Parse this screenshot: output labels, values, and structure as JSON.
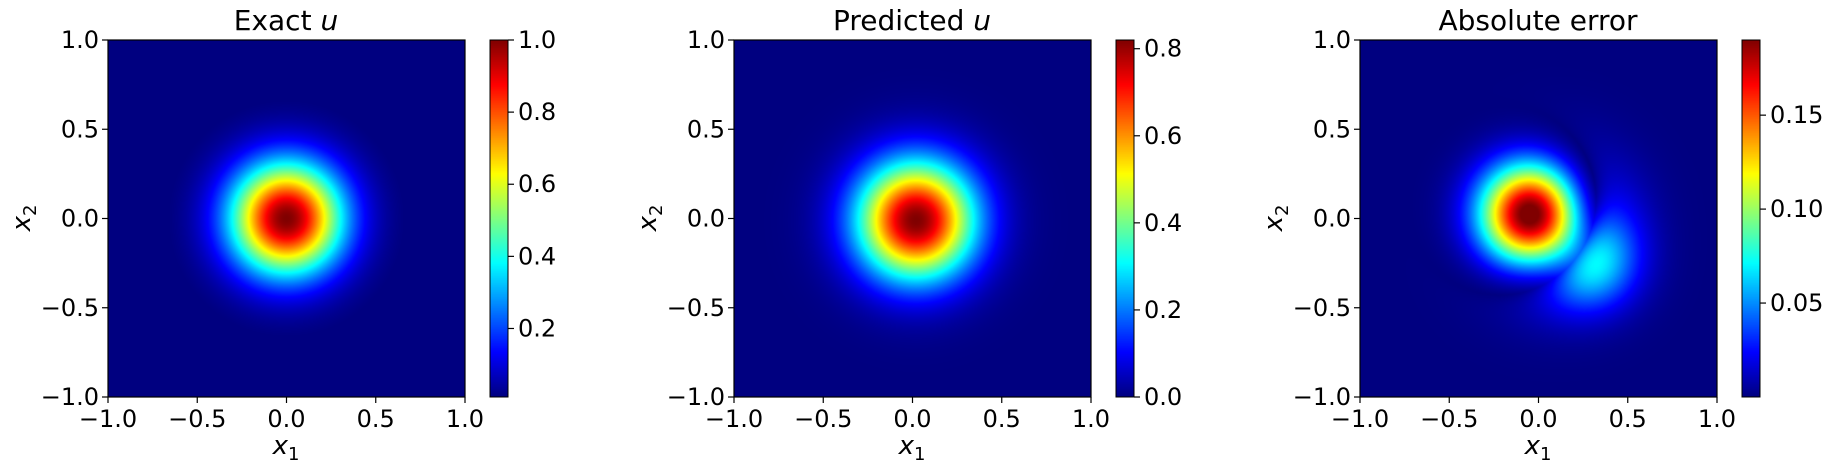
{
  "chart_data": [
    {
      "type": "heatmap",
      "title": "Exact u",
      "title_plain": "Exact ",
      "title_var": "u",
      "xlabel": "x_1",
      "ylabel": "x_2",
      "xlim": [
        -1.0,
        1.0
      ],
      "ylim": [
        -1.0,
        1.0
      ],
      "xticks": [
        -1.0,
        -0.5,
        0.0,
        0.5,
        1.0
      ],
      "yticks": [
        -1.0,
        -0.5,
        0.0,
        0.5,
        1.0
      ],
      "xtick_labels": [
        "−1.0",
        "−0.5",
        "0.0",
        "0.5",
        "1.0"
      ],
      "ytick_labels": [
        "−1.0",
        "−0.5",
        "0.0",
        "0.5",
        "1.0"
      ],
      "colormap": "jet",
      "field": {
        "kind": "gaussian",
        "amplitude": 1.0,
        "cx": 0.0,
        "cy": 0.0,
        "sigma": 0.22
      },
      "colorbar": {
        "range": [
          0.01,
          1.0
        ],
        "ticks": [
          0.2,
          0.4,
          0.6,
          0.8,
          1.0
        ],
        "tick_labels": [
          "0.2",
          "0.4",
          "0.6",
          "0.8",
          "1.0"
        ]
      }
    },
    {
      "type": "heatmap",
      "title": "Predicted u",
      "title_plain": "Predicted ",
      "title_var": "u",
      "xlabel": "x_1",
      "ylabel": "x_2",
      "xlim": [
        -1.0,
        1.0
      ],
      "ylim": [
        -1.0,
        1.0
      ],
      "xticks": [
        -1.0,
        -0.5,
        0.0,
        0.5,
        1.0
      ],
      "yticks": [
        -1.0,
        -0.5,
        0.0,
        0.5,
        1.0
      ],
      "xtick_labels": [
        "−1.0",
        "−0.5",
        "0.0",
        "0.5",
        "1.0"
      ],
      "ytick_labels": [
        "−1.0",
        "−0.5",
        "0.0",
        "0.5",
        "1.0"
      ],
      "colormap": "jet",
      "field": {
        "kind": "gaussian",
        "amplitude": 0.82,
        "cx": 0.02,
        "cy": -0.01,
        "sigma": 0.23
      },
      "colorbar": {
        "range": [
          0.0,
          0.82
        ],
        "ticks": [
          0.0,
          0.2,
          0.4,
          0.6,
          0.8
        ],
        "tick_labels": [
          "0.0",
          "0.2",
          "0.4",
          "0.6",
          "0.8"
        ]
      }
    },
    {
      "type": "heatmap",
      "title": "Absolute error",
      "title_plain": "Absolute error",
      "title_var": "",
      "xlabel": "x_1",
      "ylabel": "x_2",
      "xlim": [
        -1.0,
        1.0
      ],
      "ylim": [
        -1.0,
        1.0
      ],
      "xticks": [
        -1.0,
        -0.5,
        0.0,
        0.5,
        1.0
      ],
      "yticks": [
        -1.0,
        -0.5,
        0.0,
        0.5,
        1.0
      ],
      "xtick_labels": [
        "−1.0",
        "−0.5",
        "0.0",
        "0.5",
        "1.0"
      ],
      "ytick_labels": [
        "−1.0",
        "−0.5",
        "0.0",
        "0.5",
        "1.0"
      ],
      "colormap": "jet",
      "field": {
        "kind": "abs_difference",
        "of": [
          0,
          1
        ]
      },
      "colorbar": {
        "range": [
          0.0,
          0.19
        ],
        "ticks": [
          0.05,
          0.1,
          0.15
        ],
        "tick_labels": [
          "0.05",
          "0.10",
          "0.15"
        ]
      }
    }
  ]
}
